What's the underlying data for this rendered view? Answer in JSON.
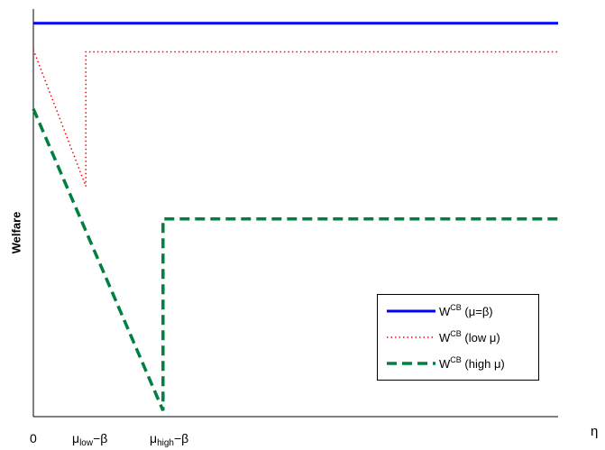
{
  "chart_data": {
    "type": "line",
    "xlabel": "η",
    "ylabel": "Welfare",
    "x_ticks": [
      {
        "x": 0,
        "label": "0"
      },
      {
        "x": 1,
        "base": "μ",
        "sub": "low",
        "rest": "−β"
      },
      {
        "x": 2.5,
        "base": "μ",
        "sub": "high",
        "rest": "−β"
      }
    ],
    "xlim": [
      0,
      10
    ],
    "ylim": [
      0,
      10
    ],
    "series": [
      {
        "name": "W^CB (μ=β)",
        "sup": "CB",
        "rest": "(μ=β)",
        "color": "#0000ff",
        "style": "solid",
        "x": [
          0,
          10
        ],
        "y": [
          9.65,
          9.65
        ]
      },
      {
        "name": "W^CB (low μ)",
        "sup": "CB",
        "rest": "(low μ)",
        "color": "#ff0000",
        "style": "dotted",
        "x": [
          0,
          1.0,
          1.0,
          10
        ],
        "y": [
          9.0,
          5.65,
          8.95,
          8.95
        ]
      },
      {
        "name": "W^CB (high μ)",
        "sup": "CB",
        "rest": "(high μ)",
        "color": "#008040",
        "style": "dashed",
        "x": [
          0,
          2.47,
          2.47,
          10
        ],
        "y": [
          7.55,
          0.15,
          4.85,
          4.85
        ]
      }
    ]
  }
}
